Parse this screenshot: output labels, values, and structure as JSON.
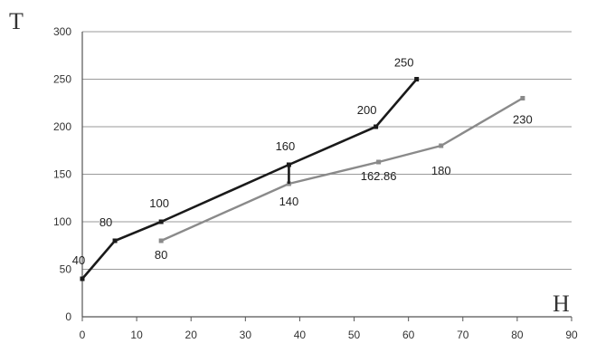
{
  "chart_data": {
    "type": "line",
    "title": "",
    "xlabel": "H",
    "ylabel": "T",
    "xlim": [
      0,
      90
    ],
    "ylim": [
      0,
      300
    ],
    "x_ticks": [
      0,
      10,
      20,
      30,
      40,
      50,
      60,
      70,
      80,
      90
    ],
    "y_ticks": [
      0,
      50,
      100,
      150,
      200,
      250,
      300
    ],
    "grid": true,
    "legend": "none",
    "series": [
      {
        "color": "#1a1a1a",
        "points": [
          {
            "x": 0,
            "y": 40,
            "label": "40"
          },
          {
            "x": 6,
            "y": 80,
            "label": "80"
          },
          {
            "x": 14.5,
            "y": 100,
            "label": "100"
          },
          {
            "x": 38,
            "y": 160,
            "label": "160"
          },
          {
            "x": 54,
            "y": 200,
            "label": "200"
          },
          {
            "x": 61.5,
            "y": 250,
            "label": "250"
          }
        ]
      },
      {
        "color": "#8a8a8a",
        "points": [
          {
            "x": 14.5,
            "y": 80,
            "label": "80"
          },
          {
            "x": 38,
            "y": 140,
            "label": "140"
          },
          {
            "x": 54.5,
            "y": 162.86,
            "label": "162.86"
          },
          {
            "x": 66,
            "y": 180,
            "label": "180"
          },
          {
            "x": 81,
            "y": 230,
            "label": "230"
          }
        ]
      }
    ],
    "connector": {
      "x": 38,
      "y_from": 140,
      "y_to": 160,
      "color": "#1a1a1a"
    }
  }
}
